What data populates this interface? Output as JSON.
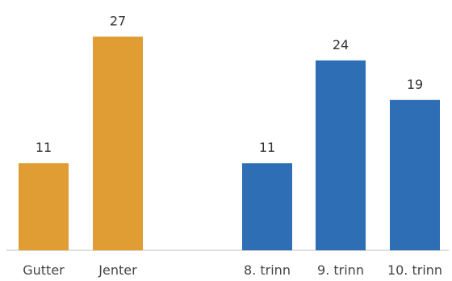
{
  "chart_data": [
    {
      "type": "bar",
      "categories": [
        "Gutter",
        "Jenter"
      ],
      "values": [
        11,
        27
      ],
      "color": "#e09d33",
      "title": "",
      "xlabel": "",
      "ylabel": "",
      "ylim": [
        0,
        30
      ],
      "grid": false
    },
    {
      "type": "bar",
      "categories": [
        "8. trinn",
        "9. trinn",
        "10. trinn"
      ],
      "values": [
        11,
        24,
        19
      ],
      "color": "#2e6eb5",
      "title": "",
      "xlabel": "",
      "ylabel": "",
      "ylim": [
        0,
        30
      ],
      "grid": false
    }
  ]
}
